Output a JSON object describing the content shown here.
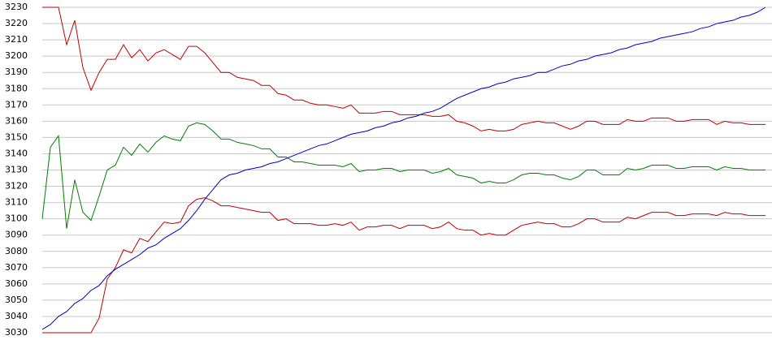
{
  "chart_data": {
    "type": "line",
    "ylim": [
      3030,
      3230
    ],
    "yticks": [
      3030,
      3040,
      3050,
      3060,
      3070,
      3080,
      3090,
      3100,
      3110,
      3120,
      3130,
      3140,
      3150,
      3160,
      3170,
      3180,
      3190,
      3200,
      3210,
      3220,
      3230
    ],
    "grid": true,
    "series": [
      {
        "color": "#c00000",
        "values": [
          3230,
          3230,
          3230,
          3207,
          3222,
          3193,
          3179,
          3190,
          3198,
          3198,
          3207,
          3199,
          3204,
          3197,
          3202,
          3204,
          3201,
          3198,
          3206,
          3206,
          3202,
          3196,
          3190,
          3190,
          3187,
          3186,
          3185,
          3182,
          3182,
          3177,
          3176,
          3173,
          3173,
          3171,
          3170,
          3170,
          3169,
          3168,
          3170,
          3165,
          3165,
          3165,
          3166,
          3166,
          3164,
          3164,
          3164,
          3164,
          3163,
          3163,
          3164,
          3160,
          3159,
          3157,
          3154,
          3155,
          3154,
          3154,
          3155,
          3158,
          3159,
          3160,
          3159,
          3159,
          3157,
          3155,
          3157,
          3160,
          3160,
          3158,
          3158,
          3158,
          3161,
          3160,
          3160,
          3162,
          3162,
          3162,
          3160,
          3160,
          3161,
          3161,
          3161,
          3158,
          3160,
          3159,
          3159,
          3158,
          3158,
          3158
        ]
      },
      {
        "color": "#008000",
        "values": [
          3100,
          3144,
          3151,
          3094,
          3124,
          3104,
          3099,
          3114,
          3130,
          3133,
          3144,
          3139,
          3146,
          3141,
          3147,
          3151,
          3149,
          3148,
          3157,
          3159,
          3158,
          3154,
          3149,
          3149,
          3147,
          3146,
          3145,
          3143,
          3143,
          3138,
          3138,
          3135,
          3135,
          3134,
          3133,
          3133,
          3133,
          3132,
          3134,
          3129,
          3130,
          3130,
          3131,
          3131,
          3129,
          3130,
          3130,
          3130,
          3128,
          3129,
          3131,
          3127,
          3126,
          3125,
          3122,
          3123,
          3122,
          3122,
          3124,
          3127,
          3128,
          3128,
          3127,
          3127,
          3125,
          3124,
          3126,
          3130,
          3130,
          3127,
          3127,
          3127,
          3131,
          3130,
          3131,
          3133,
          3133,
          3133,
          3131,
          3131,
          3132,
          3132,
          3132,
          3130,
          3132,
          3131,
          3131,
          3130,
          3130,
          3130
        ]
      },
      {
        "color": "#c00000",
        "values": [
          3030,
          3030,
          3030,
          3030,
          3030,
          3030,
          3030,
          3039,
          3063,
          3070,
          3081,
          3079,
          3088,
          3086,
          3092,
          3098,
          3097,
          3098,
          3108,
          3112,
          3113,
          3111,
          3108,
          3108,
          3107,
          3106,
          3105,
          3104,
          3104,
          3099,
          3100,
          3097,
          3097,
          3097,
          3096,
          3096,
          3097,
          3096,
          3098,
          3093,
          3095,
          3095,
          3096,
          3096,
          3094,
          3096,
          3096,
          3096,
          3094,
          3095,
          3098,
          3094,
          3093,
          3093,
          3090,
          3091,
          3090,
          3090,
          3093,
          3096,
          3097,
          3098,
          3097,
          3097,
          3095,
          3095,
          3097,
          3100,
          3100,
          3098,
          3098,
          3098,
          3101,
          3100,
          3102,
          3104,
          3104,
          3104,
          3102,
          3102,
          3103,
          3103,
          3103,
          3102,
          3104,
          3103,
          3103,
          3102,
          3102,
          3102
        ]
      },
      {
        "color": "#0000c0",
        "values": [
          3032,
          3035,
          3040,
          3043,
          3048,
          3051,
          3056,
          3059,
          3065,
          3069,
          3072,
          3075,
          3078,
          3082,
          3084,
          3088,
          3091,
          3094,
          3099,
          3105,
          3112,
          3118,
          3124,
          3127,
          3128,
          3130,
          3131,
          3132,
          3134,
          3135,
          3137,
          3139,
          3141,
          3143,
          3145,
          3146,
          3148,
          3150,
          3152,
          3153,
          3154,
          3156,
          3157,
          3159,
          3160,
          3162,
          3163,
          3165,
          3166,
          3168,
          3171,
          3174,
          3176,
          3178,
          3180,
          3181,
          3183,
          3184,
          3186,
          3187,
          3188,
          3190,
          3190,
          3192,
          3194,
          3195,
          3197,
          3198,
          3200,
          3201,
          3202,
          3204,
          3205,
          3207,
          3208,
          3209,
          3211,
          3212,
          3213,
          3214,
          3215,
          3217,
          3218,
          3220,
          3221,
          3222,
          3224,
          3225,
          3227,
          3230
        ]
      }
    ]
  }
}
